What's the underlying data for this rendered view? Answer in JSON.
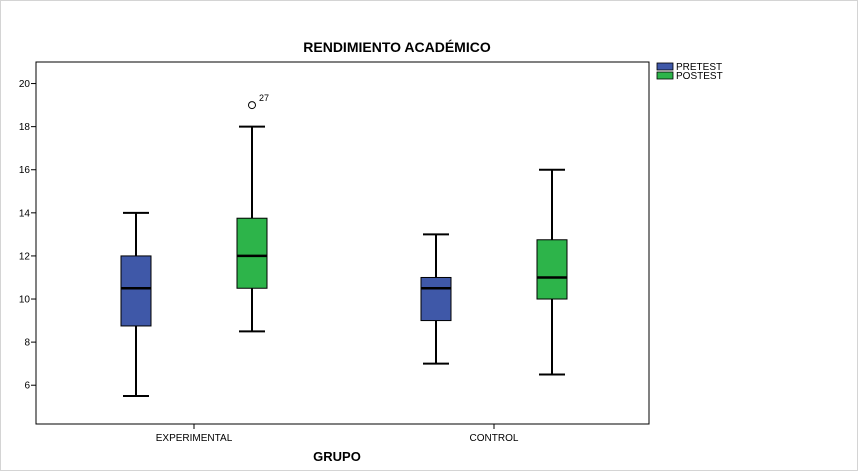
{
  "chart_data": {
    "type": "boxplot",
    "title": "RENDIMIENTO ACADÉMICO",
    "xlabel": "GRUPO",
    "ylabel": "",
    "ylim": [
      4.2,
      21.0
    ],
    "yticks": [
      6,
      8,
      10,
      12,
      14,
      16,
      18,
      20
    ],
    "categories": [
      "EXPERIMENTAL",
      "CONTROL"
    ],
    "legend_position": "top-right",
    "grid": false,
    "series": [
      {
        "name": "PRETEST",
        "color": "#3f58a8",
        "boxes": [
          {
            "min": 5.5,
            "q1": 8.75,
            "median": 10.5,
            "q3": 12.0,
            "max": 14.0
          },
          {
            "min": 7.0,
            "q1": 9.0,
            "median": 10.5,
            "q3": 11.0,
            "max": 13.0
          }
        ]
      },
      {
        "name": "POSTEST",
        "color": "#2db44a",
        "boxes": [
          {
            "min": 8.5,
            "q1": 10.5,
            "median": 12.0,
            "q3": 13.75,
            "max": 18.0,
            "outliers": [
              {
                "value": 19.0,
                "label": "27"
              }
            ]
          },
          {
            "min": 6.5,
            "q1": 10.0,
            "median": 11.0,
            "q3": 12.75,
            "max": 16.0
          }
        ]
      }
    ]
  }
}
